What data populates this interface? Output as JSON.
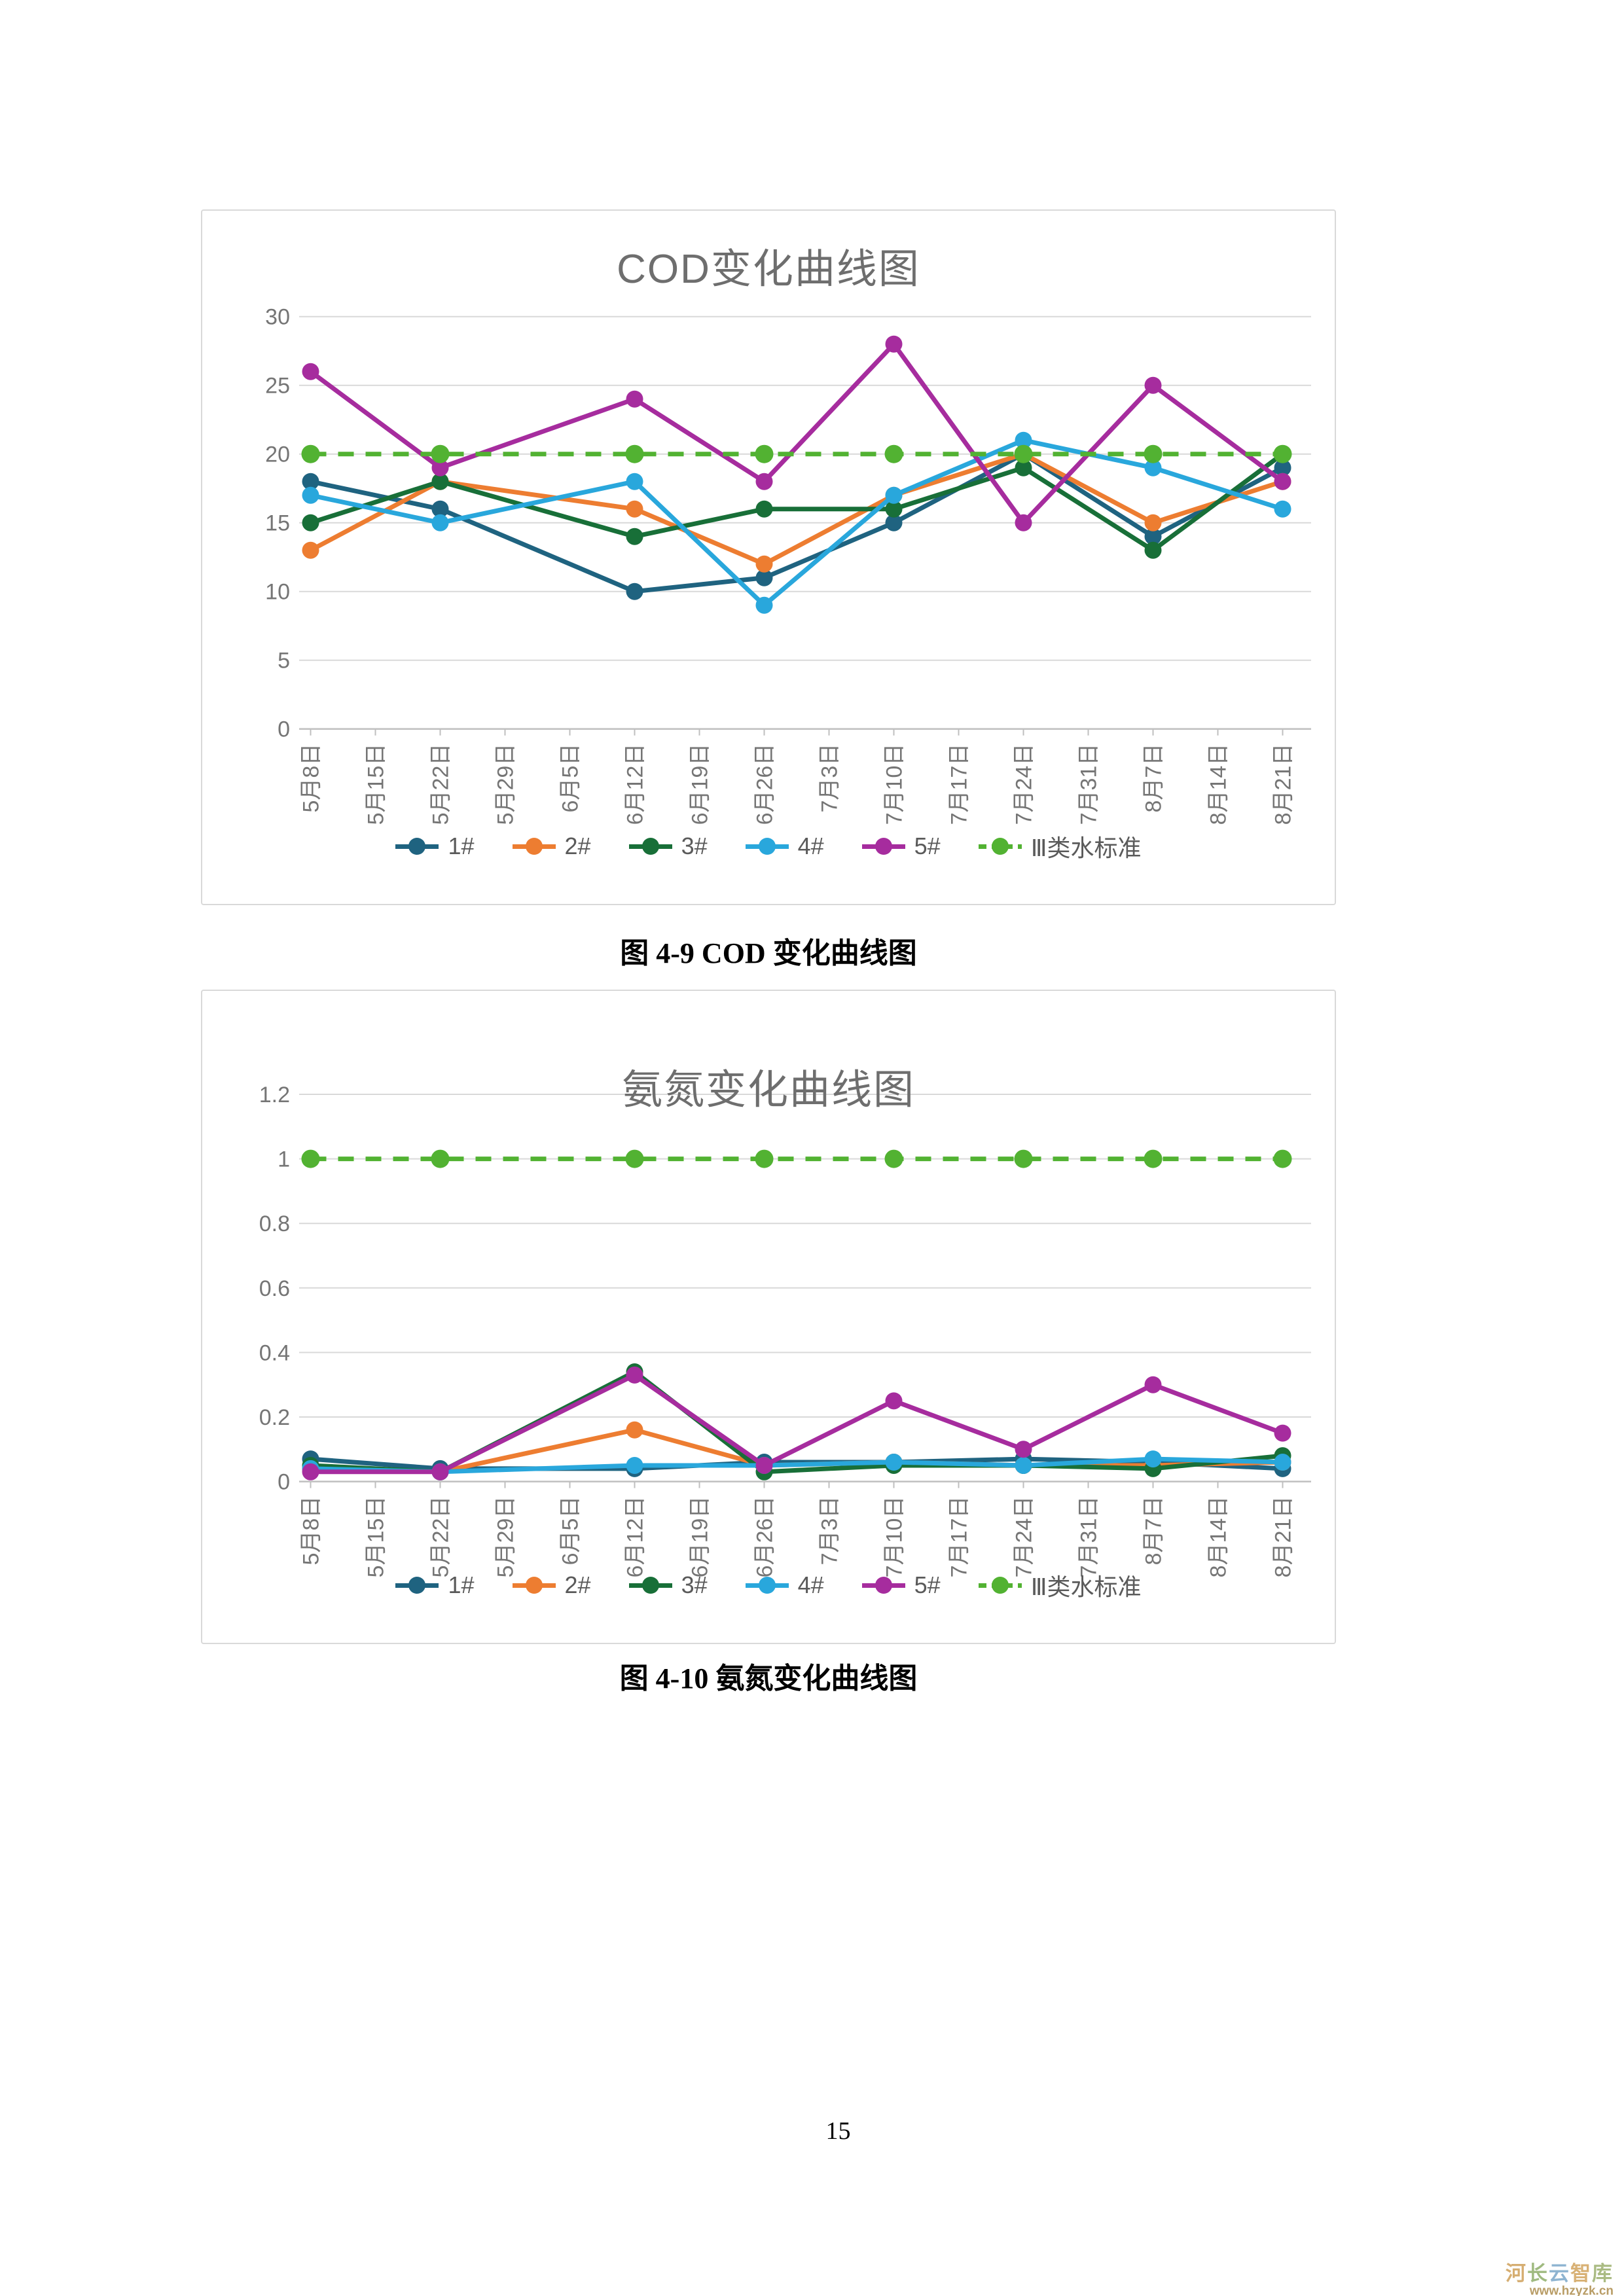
{
  "page": {
    "number": "15"
  },
  "captions": {
    "fig1": "图 4-9 COD 变化曲线图",
    "fig2": "图 4-10 氨氮变化曲线图"
  },
  "watermark": {
    "text_chars": [
      {
        "ch": "河",
        "color": "#cfa05a"
      },
      {
        "ch": "长",
        "color": "#8fae6b"
      },
      {
        "ch": "云",
        "color": "#7ba7c9"
      },
      {
        "ch": "智",
        "color": "#d2a45e"
      },
      {
        "ch": "库",
        "color": "#9cb06e"
      }
    ],
    "url": "www.hzyzk.cn",
    "url_color": "#b99d66"
  },
  "colors": {
    "grid": "#d9d9d9",
    "axis": "#bfbfbf",
    "axis_text": "#757575",
    "title_text": "#6e6e6e",
    "legend_text": "#5a5a5a"
  },
  "chart_data": [
    {
      "type": "line",
      "title": "COD变化曲线图",
      "grid": true,
      "legend_position": "bottom",
      "categories": [
        "5月8日",
        "5月15日",
        "5月22日",
        "5月29日",
        "6月5日",
        "6月12日",
        "6月19日",
        "6月26日",
        "7月3日",
        "7月10日",
        "7月17日",
        "7月24日",
        "7月31日",
        "8月7日",
        "8月14日",
        "8月21日"
      ],
      "data_indices": [
        0,
        2,
        5,
        7,
        9,
        11,
        13,
        15
      ],
      "data_dates": [
        "5月8日",
        "5月22日",
        "6月12日",
        "6月26日",
        "7月10日",
        "7月24日",
        "8月7日",
        "8月21日"
      ],
      "ylim": [
        0,
        30
      ],
      "yticks": [
        {
          "v": 0,
          "label": "0"
        },
        {
          "v": 5,
          "label": "5"
        },
        {
          "v": 10,
          "label": "10"
        },
        {
          "v": 15,
          "label": "15"
        },
        {
          "v": 20,
          "label": "20"
        },
        {
          "v": 25,
          "label": "25"
        },
        {
          "v": 30,
          "label": "30"
        }
      ],
      "series": [
        {
          "name": "1#",
          "color": "#1F6380",
          "dashed": false,
          "values": [
            18,
            16,
            10,
            11,
            15,
            20,
            14,
            19
          ]
        },
        {
          "name": "2#",
          "color": "#ED7D31",
          "dashed": false,
          "values": [
            13,
            18,
            16,
            12,
            17,
            20,
            15,
            18
          ]
        },
        {
          "name": "3#",
          "color": "#186F38",
          "dashed": false,
          "values": [
            15,
            18,
            14,
            16,
            16,
            19,
            13,
            20
          ]
        },
        {
          "name": "4#",
          "color": "#29A7DC",
          "dashed": false,
          "values": [
            17,
            15,
            18,
            9,
            17,
            21,
            19,
            16
          ]
        },
        {
          "name": "5#",
          "color": "#A62C9E",
          "dashed": false,
          "values": [
            26,
            19,
            24,
            18,
            28,
            15,
            25,
            18
          ]
        },
        {
          "name": "Ⅲ类水标准",
          "color": "#52B232",
          "dashed": true,
          "values": [
            20,
            20,
            20,
            20,
            20,
            20,
            20,
            20
          ]
        }
      ]
    },
    {
      "type": "line",
      "title": "氨氮变化曲线图",
      "grid": true,
      "legend_position": "bottom",
      "categories": [
        "5月8日",
        "5月15日",
        "5月22日",
        "5月29日",
        "6月5日",
        "6月12日",
        "6月19日",
        "6月26日",
        "7月3日",
        "7月10日",
        "7月17日",
        "7月24日",
        "7月31日",
        "8月7日",
        "8月14日",
        "8月21日"
      ],
      "data_indices": [
        0,
        2,
        5,
        7,
        9,
        11,
        13,
        15
      ],
      "data_dates": [
        "5月8日",
        "5月22日",
        "6月12日",
        "6月26日",
        "7月10日",
        "7月24日",
        "8月7日",
        "8月21日"
      ],
      "ylim": [
        0,
        1.2
      ],
      "yticks": [
        {
          "v": 0,
          "label": "0"
        },
        {
          "v": 0.2,
          "label": "0.2"
        },
        {
          "v": 0.4,
          "label": "0.4"
        },
        {
          "v": 0.6,
          "label": "0.6"
        },
        {
          "v": 0.8,
          "label": "0.8"
        },
        {
          "v": 1,
          "label": "1"
        },
        {
          "v": 1.2,
          "label": "1.2"
        }
      ],
      "series": [
        {
          "name": "1#",
          "color": "#1F6380",
          "dashed": false,
          "values": [
            0.07,
            0.04,
            0.04,
            0.06,
            0.06,
            0.07,
            0.06,
            0.04
          ]
        },
        {
          "name": "2#",
          "color": "#ED7D31",
          "dashed": false,
          "values": [
            0.04,
            0.03,
            0.16,
            0.05,
            0.06,
            0.05,
            0.05,
            0.06
          ]
        },
        {
          "name": "3#",
          "color": "#186F38",
          "dashed": false,
          "values": [
            0.05,
            0.03,
            0.34,
            0.03,
            0.05,
            0.05,
            0.04,
            0.08
          ]
        },
        {
          "name": "4#",
          "color": "#29A7DC",
          "dashed": false,
          "values": [
            0.04,
            0.03,
            0.05,
            0.05,
            0.06,
            0.05,
            0.07,
            0.06
          ]
        },
        {
          "name": "5#",
          "color": "#A62C9E",
          "dashed": false,
          "values": [
            0.03,
            0.03,
            0.33,
            0.05,
            0.25,
            0.1,
            0.3,
            0.15
          ]
        },
        {
          "name": "Ⅲ类水标准",
          "color": "#52B232",
          "dashed": true,
          "values": [
            1,
            1,
            1,
            1,
            1,
            1,
            1,
            1
          ]
        }
      ]
    }
  ]
}
